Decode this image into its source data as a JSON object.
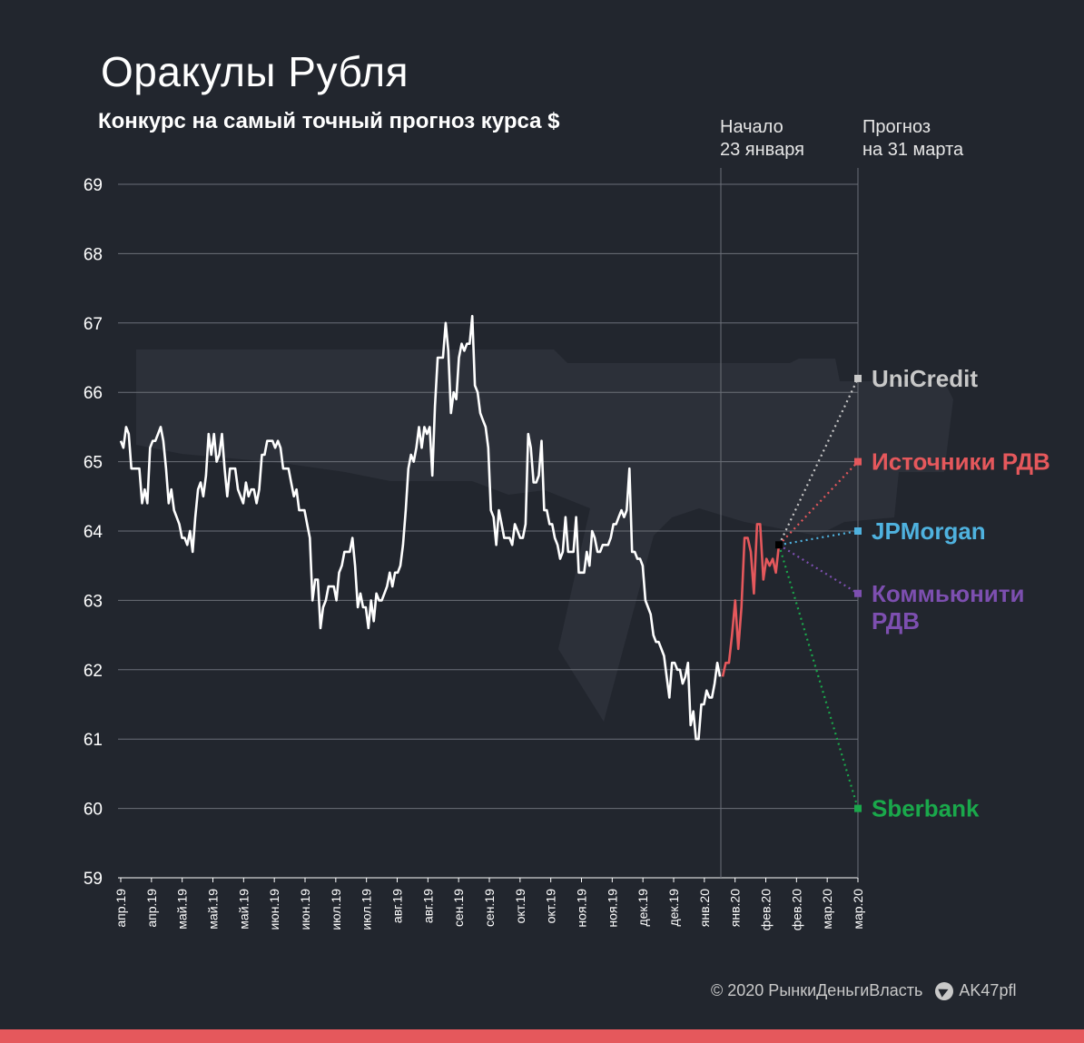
{
  "header": {
    "title": "Оракулы Рубля",
    "subtitle": "Конкурс на самый точный прогноз курса $",
    "start_label": "Начало\n23 января",
    "forecast_label": "Прогноз\nна 31 марта"
  },
  "footer": {
    "copyright": "© 2020  РынкиДеньгиВласть",
    "telegram": "AK47pfl"
  },
  "colors": {
    "background": "#22262e",
    "history_line": "#ffffff",
    "recent_line": "#e5585c",
    "grid": "#6b6f78",
    "accent_bar": "#e5585c"
  },
  "chart_data": {
    "type": "line",
    "title": "Оракулы Рубля",
    "subtitle": "Конкурс на самый точный прогноз курса $",
    "ylim": [
      59,
      69
    ],
    "yticks": [
      69,
      68,
      67,
      66,
      65,
      64,
      63,
      62,
      61,
      60,
      59
    ],
    "xticks": [
      "апр.19",
      "апр.19",
      "май.19",
      "май.19",
      "май.19",
      "июн.19",
      "июн.19",
      "июл.19",
      "июл.19",
      "авг.19",
      "авг.19",
      "сен.19",
      "сен.19",
      "окт.19",
      "окт.19",
      "ноя.19",
      "ноя.19",
      "дек.19",
      "дек.19",
      "янв.20",
      "янв.20",
      "фев.20",
      "фев.20",
      "мар.20",
      "мар.20"
    ],
    "grid": true,
    "history": [
      65.3,
      65.2,
      65.5,
      65.4,
      64.9,
      64.9,
      64.9,
      64.9,
      64.4,
      64.6,
      64.4,
      65.2,
      65.3,
      65.3,
      65.4,
      65.5,
      65.3,
      64.9,
      64.4,
      64.6,
      64.3,
      64.2,
      64.1,
      63.9,
      63.9,
      63.8,
      64.0,
      63.7,
      64.2,
      64.6,
      64.7,
      64.5,
      64.8,
      65.4,
      65.1,
      65.4,
      65.0,
      65.1,
      65.4,
      64.9,
      64.5,
      64.9,
      64.9,
      64.9,
      64.6,
      64.5,
      64.4,
      64.7,
      64.5,
      64.6,
      64.6,
      64.4,
      64.6,
      65.1,
      65.1,
      65.3,
      65.3,
      65.3,
      65.2,
      65.3,
      65.2,
      64.9,
      64.9,
      64.9,
      64.7,
      64.5,
      64.6,
      64.3,
      64.3,
      64.3,
      64.1,
      63.9,
      63.0,
      63.3,
      63.3,
      62.6,
      62.9,
      63.0,
      63.2,
      63.2,
      63.2,
      63.0,
      63.4,
      63.5,
      63.7,
      63.7,
      63.7,
      63.9,
      63.5,
      62.9,
      63.1,
      62.9,
      62.9,
      62.6,
      63.0,
      62.7,
      63.1,
      63.0,
      63.0,
      63.1,
      63.2,
      63.4,
      63.2,
      63.4,
      63.4,
      63.5,
      63.8,
      64.3,
      64.9,
      65.1,
      65.0,
      65.2,
      65.5,
      65.2,
      65.5,
      65.4,
      65.5,
      64.8,
      65.8,
      66.5,
      66.5,
      66.5,
      67.0,
      66.6,
      65.7,
      66.0,
      65.9,
      66.5,
      66.7,
      66.6,
      66.7,
      66.7,
      67.1,
      66.1,
      66.0,
      65.7,
      65.6,
      65.5,
      65.2,
      64.3,
      64.2,
      63.8,
      64.3,
      64.1,
      63.9,
      63.9,
      63.9,
      63.8,
      64.1,
      64.0,
      63.9,
      63.9,
      64.1,
      65.4,
      65.2,
      64.7,
      64.7,
      64.8,
      65.3,
      64.3,
      64.3,
      64.1,
      64.1,
      63.9,
      63.8,
      63.6,
      63.7,
      64.2,
      63.7,
      63.7,
      63.7,
      64.2,
      63.4,
      63.4,
      63.4,
      63.7,
      63.5,
      64.0,
      63.9,
      63.7,
      63.7,
      63.8,
      63.8,
      63.8,
      63.9,
      64.1,
      64.1,
      64.2,
      64.3,
      64.2,
      64.3,
      64.9,
      63.7,
      63.7,
      63.6,
      63.6,
      63.5,
      63.0,
      62.9,
      62.8,
      62.5,
      62.4,
      62.4,
      62.3,
      62.2,
      61.9,
      61.6,
      62.1,
      62.1,
      62.0,
      62.0,
      61.8,
      61.9,
      62.1,
      61.2,
      61.4,
      61.0,
      61.0,
      61.5,
      61.5,
      61.7,
      61.6,
      61.6,
      61.8,
      62.1,
      61.9
    ],
    "recent": [
      61.9,
      62.1,
      62.1,
      62.5,
      63.0,
      62.3,
      62.9,
      63.9,
      63.9,
      63.7,
      63.1,
      64.1,
      64.1,
      63.3,
      63.6,
      63.5,
      63.6,
      63.4,
      63.8
    ],
    "forecast_origin": 63.8,
    "forecasts": [
      {
        "name": "UniCredit",
        "value": 66.2,
        "color": "#c8c8c8"
      },
      {
        "name": "Источники РДВ",
        "value": 65.0,
        "color": "#e5585c"
      },
      {
        "name": "JPMorgan",
        "value": 64.0,
        "color": "#4fb2df"
      },
      {
        "name": "Коммьюнити\nРДВ",
        "value": 63.1,
        "color": "#7d4fb0"
      },
      {
        "name": "Sberbank",
        "value": 60.0,
        "color": "#1aa84b"
      }
    ]
  }
}
